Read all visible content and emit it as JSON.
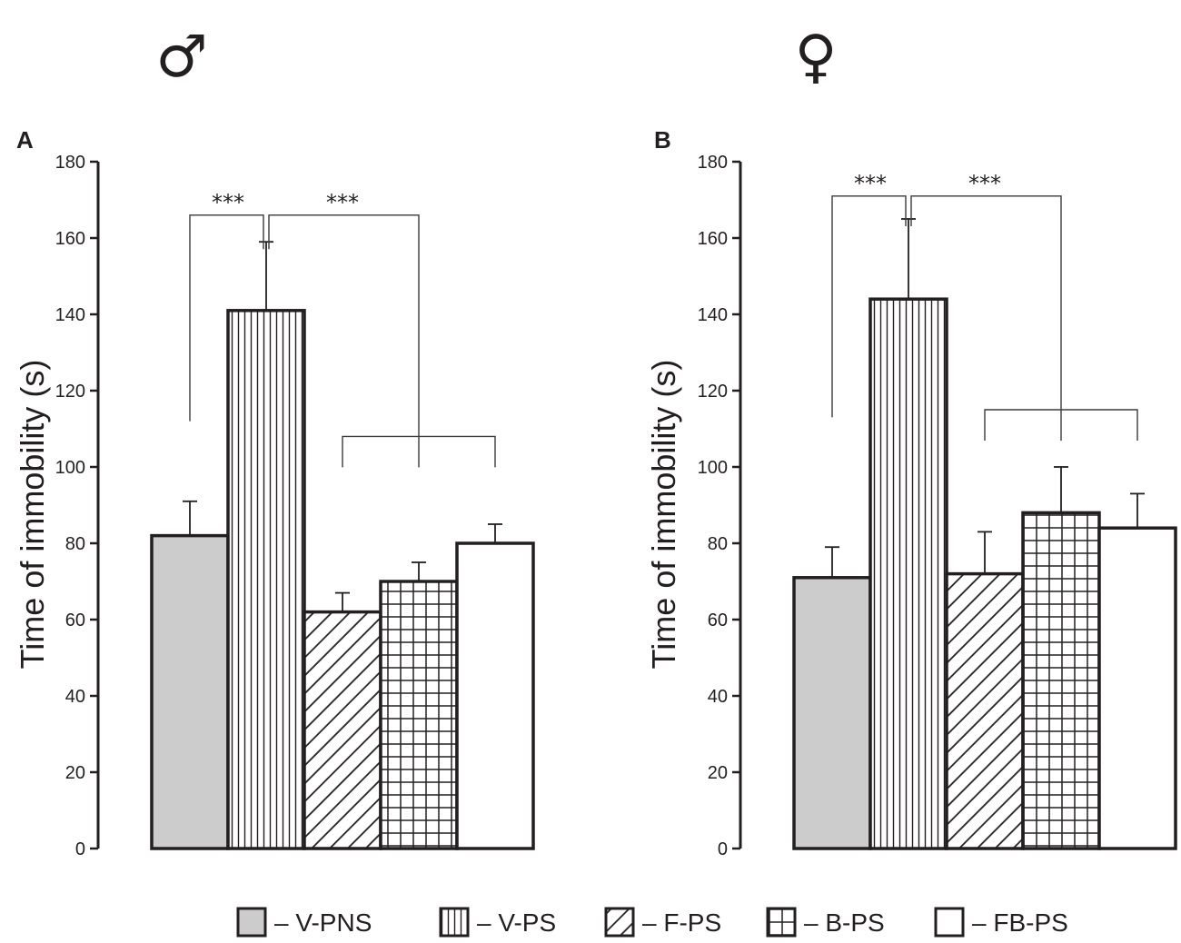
{
  "chart_data": [
    {
      "type": "bar",
      "panel": "A",
      "sex_symbol": "♂",
      "ylabel": "Time of immobility (s)",
      "ylim": [
        0,
        180
      ],
      "yticks": [
        0,
        20,
        40,
        60,
        80,
        100,
        120,
        140,
        160,
        180
      ],
      "categories": [
        "V-PNS",
        "V-PS",
        "F-PS",
        "B-PS",
        "FB-PS"
      ],
      "values": [
        82,
        141,
        62,
        70,
        80
      ],
      "errors": [
        9,
        18,
        5,
        5,
        5
      ],
      "significance": [
        {
          "label": "***",
          "from": "V-PNS",
          "to": "V-PS",
          "bracket_y": 166
        },
        {
          "label": "***",
          "from": "V-PS",
          "to": [
            "F-PS",
            "B-PS",
            "FB-PS"
          ],
          "bracket_y": 166,
          "group_y": 108
        }
      ]
    },
    {
      "type": "bar",
      "panel": "B",
      "sex_symbol": "♀",
      "ylabel": "Time of immobility (s)",
      "ylim": [
        0,
        180
      ],
      "yticks": [
        0,
        20,
        40,
        60,
        80,
        100,
        120,
        140,
        160,
        180
      ],
      "categories": [
        "V-PNS",
        "V-PS",
        "F-PS",
        "B-PS",
        "FB-PS"
      ],
      "values": [
        71,
        144,
        72,
        88,
        84
      ],
      "errors": [
        8,
        21,
        11,
        12,
        9
      ],
      "significance": [
        {
          "label": "***",
          "from": "V-PNS",
          "to": "V-PS",
          "bracket_y": 171
        },
        {
          "label": "***",
          "from": "V-PS",
          "to": [
            "F-PS",
            "B-PS",
            "FB-PS"
          ],
          "bracket_y": 171,
          "group_y": 115
        }
      ]
    }
  ],
  "legend": [
    {
      "key": "V-PNS",
      "label": "– V-PNS",
      "pattern": "grey"
    },
    {
      "key": "V-PS",
      "label": "– V-PS",
      "pattern": "vlines"
    },
    {
      "key": "F-PS",
      "label": "– F-PS",
      "pattern": "diag"
    },
    {
      "key": "B-PS",
      "label": "– B-PS",
      "pattern": "grid"
    },
    {
      "key": "FB-PS",
      "label": "– FB-PS",
      "pattern": "white"
    }
  ],
  "colors": {
    "ink": "#231f20",
    "grey_fill": "#cccccc",
    "white_fill": "#ffffff"
  }
}
